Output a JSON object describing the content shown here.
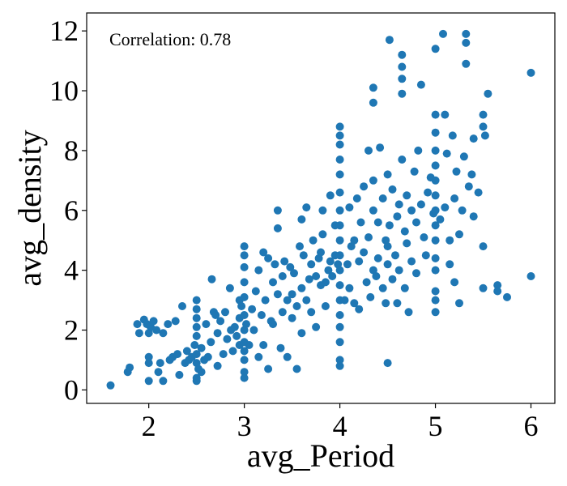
{
  "chart_data": {
    "type": "scatter",
    "xlabel": "avg_Period",
    "ylabel": "avg_density",
    "annotation": "Correlation: 0.78",
    "xlim": [
      1.35,
      6.25
    ],
    "ylim": [
      -0.45,
      12.6
    ],
    "xticks": [
      2,
      3,
      4,
      5,
      6
    ],
    "yticks": [
      0,
      2,
      4,
      6,
      8,
      10,
      12
    ],
    "grid": false,
    "marker_color": "#1f77b4",
    "points_approximate": [
      [
        1.6,
        0.15
      ],
      [
        1.78,
        0.6
      ],
      [
        1.8,
        0.75
      ],
      [
        1.88,
        2.2
      ],
      [
        1.9,
        1.9
      ],
      [
        1.95,
        2.35
      ],
      [
        1.98,
        2.2
      ],
      [
        2.0,
        0.3
      ],
      [
        2.0,
        0.9
      ],
      [
        2.0,
        1.1
      ],
      [
        2.0,
        1.9
      ],
      [
        2.02,
        2.1
      ],
      [
        2.05,
        2.3
      ],
      [
        2.08,
        2.0
      ],
      [
        2.1,
        0.6
      ],
      [
        2.12,
        0.9
      ],
      [
        2.15,
        0.3
      ],
      [
        2.15,
        1.9
      ],
      [
        2.2,
        2.2
      ],
      [
        2.22,
        1.0
      ],
      [
        2.25,
        1.1
      ],
      [
        2.28,
        2.3
      ],
      [
        2.3,
        1.2
      ],
      [
        2.32,
        0.5
      ],
      [
        2.35,
        2.8
      ],
      [
        2.38,
        0.9
      ],
      [
        2.4,
        1.3
      ],
      [
        2.42,
        1.0
      ],
      [
        2.45,
        1.1
      ],
      [
        2.48,
        1.5
      ],
      [
        2.5,
        0.9
      ],
      [
        2.5,
        1.2
      ],
      [
        2.52,
        0.7
      ],
      [
        2.55,
        0.6
      ],
      [
        2.5,
        1.8
      ],
      [
        2.5,
        2.1
      ],
      [
        2.5,
        2.4
      ],
      [
        2.5,
        2.7
      ],
      [
        2.5,
        3.0
      ],
      [
        2.5,
        0.3
      ],
      [
        2.5,
        0.4
      ],
      [
        2.55,
        1.4
      ],
      [
        2.58,
        1.0
      ],
      [
        2.6,
        2.2
      ],
      [
        2.62,
        1.1
      ],
      [
        2.65,
        1.6
      ],
      [
        2.66,
        3.7
      ],
      [
        2.68,
        2.6
      ],
      [
        2.7,
        2.5
      ],
      [
        2.72,
        0.8
      ],
      [
        2.72,
        1.9
      ],
      [
        2.75,
        2.3
      ],
      [
        2.78,
        1.2
      ],
      [
        2.8,
        2.6
      ],
      [
        2.82,
        1.7
      ],
      [
        2.85,
        3.4
      ],
      [
        2.86,
        2.0
      ],
      [
        2.88,
        1.3
      ],
      [
        2.9,
        2.1
      ],
      [
        2.92,
        1.8
      ],
      [
        2.95,
        3.0
      ],
      [
        2.95,
        2.4
      ],
      [
        2.95,
        1.5
      ],
      [
        2.97,
        2.8
      ],
      [
        3.0,
        0.4
      ],
      [
        3.0,
        0.6
      ],
      [
        3.0,
        1.0
      ],
      [
        3.0,
        1.3
      ],
      [
        3.0,
        1.6
      ],
      [
        3.0,
        2.0
      ],
      [
        3.0,
        2.5
      ],
      [
        3.0,
        3.1
      ],
      [
        3.0,
        3.6
      ],
      [
        3.0,
        4.1
      ],
      [
        3.0,
        4.5
      ],
      [
        3.0,
        4.8
      ],
      [
        3.02,
        2.2
      ],
      [
        3.05,
        1.5
      ],
      [
        3.08,
        2.7
      ],
      [
        3.1,
        2.0
      ],
      [
        3.12,
        3.3
      ],
      [
        3.15,
        1.1
      ],
      [
        3.15,
        4.0
      ],
      [
        3.18,
        2.5
      ],
      [
        3.2,
        4.6
      ],
      [
        3.2,
        1.5
      ],
      [
        3.22,
        3.0
      ],
      [
        3.25,
        4.4
      ],
      [
        3.25,
        0.7
      ],
      [
        3.28,
        2.3
      ],
      [
        3.3,
        3.6
      ],
      [
        3.3,
        2.2
      ],
      [
        3.32,
        4.2
      ],
      [
        3.35,
        6.0
      ],
      [
        3.35,
        5.4
      ],
      [
        3.35,
        3.2
      ],
      [
        3.38,
        1.4
      ],
      [
        3.4,
        3.8
      ],
      [
        3.4,
        2.6
      ],
      [
        3.42,
        4.3
      ],
      [
        3.45,
        1.1
      ],
      [
        3.45,
        3.0
      ],
      [
        3.48,
        4.1
      ],
      [
        3.5,
        3.2
      ],
      [
        3.5,
        2.4
      ],
      [
        3.52,
        3.9
      ],
      [
        3.55,
        2.8
      ],
      [
        3.55,
        0.7
      ],
      [
        3.58,
        4.8
      ],
      [
        3.6,
        3.4
      ],
      [
        3.6,
        5.7
      ],
      [
        3.6,
        1.9
      ],
      [
        3.62,
        4.5
      ],
      [
        3.65,
        3.0
      ],
      [
        3.65,
        6.1
      ],
      [
        3.68,
        3.7
      ],
      [
        3.7,
        4.2
      ],
      [
        3.7,
        2.6
      ],
      [
        3.72,
        5.0
      ],
      [
        3.75,
        3.8
      ],
      [
        3.75,
        2.1
      ],
      [
        3.78,
        4.4
      ],
      [
        3.8,
        3.5
      ],
      [
        3.8,
        4.6
      ],
      [
        3.82,
        5.2
      ],
      [
        3.82,
        6.0
      ],
      [
        3.85,
        3.6
      ],
      [
        3.85,
        2.8
      ],
      [
        3.88,
        4.0
      ],
      [
        3.9,
        4.3
      ],
      [
        3.9,
        6.5
      ],
      [
        3.92,
        3.8
      ],
      [
        3.95,
        4.5
      ],
      [
        3.95,
        5.5
      ],
      [
        3.98,
        4.2
      ],
      [
        4.0,
        0.8
      ],
      [
        4.0,
        1.0
      ],
      [
        4.0,
        1.6
      ],
      [
        4.0,
        2.1
      ],
      [
        4.0,
        2.5
      ],
      [
        4.0,
        3.0
      ],
      [
        4.0,
        3.5
      ],
      [
        4.0,
        4.0
      ],
      [
        4.0,
        4.5
      ],
      [
        4.0,
        5.0
      ],
      [
        4.0,
        5.5
      ],
      [
        4.0,
        6.0
      ],
      [
        4.0,
        6.6
      ],
      [
        4.0,
        7.2
      ],
      [
        4.0,
        7.7
      ],
      [
        4.0,
        8.2
      ],
      [
        4.0,
        8.5
      ],
      [
        4.0,
        8.8
      ],
      [
        4.05,
        3.0
      ],
      [
        4.08,
        4.2
      ],
      [
        4.1,
        3.4
      ],
      [
        4.1,
        6.1
      ],
      [
        4.12,
        4.8
      ],
      [
        4.15,
        2.9
      ],
      [
        4.15,
        5.0
      ],
      [
        4.18,
        6.4
      ],
      [
        4.2,
        2.7
      ],
      [
        4.2,
        4.3
      ],
      [
        4.22,
        5.6
      ],
      [
        4.25,
        4.6
      ],
      [
        4.25,
        6.8
      ],
      [
        4.28,
        3.6
      ],
      [
        4.3,
        5.1
      ],
      [
        4.3,
        8.0
      ],
      [
        4.32,
        3.1
      ],
      [
        4.35,
        4.0
      ],
      [
        4.35,
        6.0
      ],
      [
        4.35,
        7.0
      ],
      [
        4.35,
        9.6
      ],
      [
        4.35,
        10.1
      ],
      [
        4.38,
        3.8
      ],
      [
        4.4,
        5.6
      ],
      [
        4.4,
        4.4
      ],
      [
        4.42,
        8.1
      ],
      [
        4.45,
        6.4
      ],
      [
        4.45,
        3.4
      ],
      [
        4.48,
        5.0
      ],
      [
        4.48,
        2.9
      ],
      [
        4.5,
        0.9
      ],
      [
        4.5,
        4.2
      ],
      [
        4.5,
        4.8
      ],
      [
        4.5,
        7.2
      ],
      [
        4.52,
        11.7
      ],
      [
        4.52,
        5.5
      ],
      [
        4.55,
        3.7
      ],
      [
        4.55,
        6.7
      ],
      [
        4.58,
        4.5
      ],
      [
        4.6,
        5.8
      ],
      [
        4.6,
        2.9
      ],
      [
        4.62,
        6.2
      ],
      [
        4.62,
        4.0
      ],
      [
        4.65,
        9.9
      ],
      [
        4.65,
        10.4
      ],
      [
        4.65,
        10.8
      ],
      [
        4.65,
        11.2
      ],
      [
        4.65,
        7.7
      ],
      [
        4.68,
        5.3
      ],
      [
        4.68,
        3.4
      ],
      [
        4.7,
        4.9
      ],
      [
        4.7,
        6.5
      ],
      [
        4.72,
        2.6
      ],
      [
        4.75,
        6.0
      ],
      [
        4.75,
        4.3
      ],
      [
        4.78,
        7.3
      ],
      [
        4.8,
        5.6
      ],
      [
        4.8,
        3.9
      ],
      [
        4.82,
        8.0
      ],
      [
        4.85,
        6.2
      ],
      [
        4.85,
        10.2
      ],
      [
        4.88,
        5.1
      ],
      [
        4.9,
        4.5
      ],
      [
        4.92,
        6.6
      ],
      [
        4.95,
        7.1
      ],
      [
        4.98,
        5.9
      ],
      [
        5.0,
        2.6
      ],
      [
        5.0,
        3.0
      ],
      [
        5.0,
        3.3
      ],
      [
        5.0,
        4.0
      ],
      [
        5.0,
        4.4
      ],
      [
        5.0,
        5.0
      ],
      [
        5.0,
        5.5
      ],
      [
        5.0,
        6.0
      ],
      [
        5.0,
        6.5
      ],
      [
        5.0,
        7.0
      ],
      [
        5.0,
        7.5
      ],
      [
        5.0,
        8.0
      ],
      [
        5.0,
        8.6
      ],
      [
        5.0,
        9.2
      ],
      [
        5.0,
        11.4
      ],
      [
        5.05,
        5.7
      ],
      [
        5.08,
        11.9
      ],
      [
        5.1,
        9.2
      ],
      [
        5.1,
        6.1
      ],
      [
        5.12,
        7.9
      ],
      [
        5.15,
        5.0
      ],
      [
        5.15,
        4.2
      ],
      [
        5.18,
        8.5
      ],
      [
        5.2,
        6.4
      ],
      [
        5.2,
        3.6
      ],
      [
        5.22,
        7.3
      ],
      [
        5.25,
        2.9
      ],
      [
        5.25,
        5.2
      ],
      [
        5.28,
        6.0
      ],
      [
        5.3,
        7.8
      ],
      [
        5.32,
        11.9
      ],
      [
        5.32,
        11.6
      ],
      [
        5.32,
        10.9
      ],
      [
        5.35,
        6.8
      ],
      [
        5.38,
        7.2
      ],
      [
        5.4,
        5.8
      ],
      [
        5.4,
        8.4
      ],
      [
        5.45,
        6.6
      ],
      [
        5.5,
        3.4
      ],
      [
        5.5,
        4.8
      ],
      [
        5.5,
        8.8
      ],
      [
        5.5,
        9.2
      ],
      [
        5.52,
        8.5
      ],
      [
        5.55,
        9.9
      ],
      [
        5.65,
        3.5
      ],
      [
        5.65,
        3.3
      ],
      [
        5.75,
        3.1
      ],
      [
        6.0,
        10.6
      ],
      [
        6.0,
        3.8
      ]
    ]
  }
}
